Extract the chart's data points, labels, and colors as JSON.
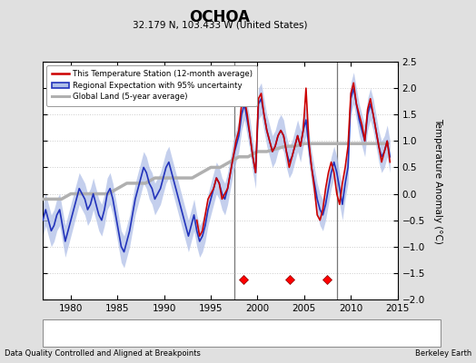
{
  "title": "OCHOA",
  "subtitle": "32.179 N, 103.433 W (United States)",
  "ylabel": "Temperature Anomaly (°C)",
  "xlim": [
    1977,
    2015
  ],
  "ylim": [
    -2.0,
    2.5
  ],
  "yticks": [
    -2.0,
    -1.5,
    -1.0,
    -0.5,
    0.0,
    0.5,
    1.0,
    1.5,
    2.0,
    2.5
  ],
  "xticks": [
    1980,
    1985,
    1990,
    1995,
    2000,
    2005,
    2010,
    2015
  ],
  "footer_left": "Data Quality Controlled and Aligned at Breakpoints",
  "footer_right": "Berkeley Earth",
  "bg_color": "#e0e0e0",
  "plot_bg_color": "#ffffff",
  "vertical_lines": [
    1997.5,
    2008.5
  ],
  "station_move_years": [
    1998.5,
    2003.5,
    2007.5
  ],
  "blue_line_x": [
    1977.0,
    1977.3,
    1977.6,
    1977.9,
    1978.2,
    1978.5,
    1978.8,
    1979.1,
    1979.4,
    1979.7,
    1980.0,
    1980.3,
    1980.6,
    1980.9,
    1981.2,
    1981.5,
    1981.8,
    1982.1,
    1982.4,
    1982.7,
    1983.0,
    1983.3,
    1983.6,
    1983.9,
    1984.2,
    1984.5,
    1984.8,
    1985.1,
    1985.4,
    1985.7,
    1986.0,
    1986.3,
    1986.6,
    1986.9,
    1987.2,
    1987.5,
    1987.8,
    1988.1,
    1988.4,
    1988.7,
    1989.0,
    1989.3,
    1989.6,
    1989.9,
    1990.2,
    1990.5,
    1990.8,
    1991.1,
    1991.4,
    1991.7,
    1992.0,
    1992.3,
    1992.6,
    1992.9,
    1993.2,
    1993.5,
    1993.8,
    1994.1,
    1994.4,
    1994.7,
    1995.0,
    1995.3,
    1995.6,
    1995.9,
    1996.2,
    1996.5,
    1996.8,
    1997.1,
    1997.4,
    1997.7,
    1998.0,
    1998.3,
    1998.6,
    1998.9,
    1999.2,
    1999.5,
    1999.8,
    2000.1,
    2000.4,
    2000.7,
    2001.0,
    2001.3,
    2001.6,
    2001.9,
    2002.2,
    2002.5,
    2002.8,
    2003.1,
    2003.4,
    2003.7,
    2004.0,
    2004.3,
    2004.6,
    2004.9,
    2005.2,
    2005.5,
    2005.8,
    2006.1,
    2006.4,
    2006.7,
    2007.0,
    2007.3,
    2007.6,
    2007.9,
    2008.2,
    2008.5,
    2008.8,
    2009.1,
    2009.4,
    2009.7,
    2010.0,
    2010.3,
    2010.6,
    2010.9,
    2011.2,
    2011.5,
    2011.8,
    2012.1,
    2012.4,
    2012.7,
    2013.0,
    2013.3,
    2013.6,
    2013.9,
    2014.2
  ],
  "blue_line_y": [
    -0.5,
    -0.3,
    -0.5,
    -0.7,
    -0.6,
    -0.4,
    -0.3,
    -0.6,
    -0.9,
    -0.7,
    -0.5,
    -0.3,
    -0.1,
    0.1,
    0.0,
    -0.1,
    -0.3,
    -0.2,
    0.0,
    -0.2,
    -0.4,
    -0.5,
    -0.3,
    0.0,
    0.1,
    -0.1,
    -0.4,
    -0.7,
    -1.0,
    -1.1,
    -0.9,
    -0.7,
    -0.4,
    -0.1,
    0.1,
    0.3,
    0.5,
    0.4,
    0.2,
    0.1,
    -0.1,
    0.0,
    0.1,
    0.3,
    0.5,
    0.6,
    0.4,
    0.2,
    0.0,
    -0.2,
    -0.4,
    -0.6,
    -0.8,
    -0.6,
    -0.4,
    -0.7,
    -0.9,
    -0.8,
    -0.6,
    -0.3,
    -0.1,
    0.1,
    0.3,
    0.2,
    0.0,
    -0.1,
    0.1,
    0.4,
    0.7,
    0.9,
    1.1,
    1.5,
    1.7,
    1.4,
    1.1,
    0.7,
    0.4,
    1.7,
    1.8,
    1.5,
    1.2,
    1.0,
    0.8,
    0.9,
    1.1,
    1.2,
    1.1,
    0.8,
    0.6,
    0.7,
    0.9,
    1.1,
    0.9,
    1.2,
    1.4,
    0.9,
    0.5,
    0.2,
    -0.1,
    -0.3,
    -0.4,
    -0.2,
    0.1,
    0.4,
    0.6,
    0.4,
    0.1,
    -0.2,
    0.2,
    0.5,
    1.8,
    2.0,
    1.7,
    1.4,
    1.2,
    1.0,
    1.5,
    1.7,
    1.5,
    1.2,
    0.9,
    0.7,
    0.8,
    1.0,
    0.7
  ],
  "blue_fill_upper": [
    -0.2,
    -0.0,
    -0.2,
    -0.4,
    -0.3,
    -0.1,
    -0.0,
    -0.3,
    -0.6,
    -0.4,
    -0.2,
    -0.0,
    0.2,
    0.4,
    0.3,
    0.2,
    0.0,
    0.1,
    0.3,
    0.1,
    -0.1,
    -0.2,
    -0.0,
    0.3,
    0.4,
    0.2,
    -0.1,
    -0.4,
    -0.7,
    -0.8,
    -0.6,
    -0.4,
    -0.1,
    0.2,
    0.4,
    0.6,
    0.8,
    0.7,
    0.5,
    0.4,
    0.2,
    0.3,
    0.4,
    0.6,
    0.8,
    0.9,
    0.7,
    0.5,
    0.3,
    0.1,
    -0.1,
    -0.3,
    -0.5,
    -0.3,
    -0.1,
    -0.4,
    -0.6,
    -0.5,
    -0.3,
    -0.0,
    0.2,
    0.4,
    0.6,
    0.5,
    0.3,
    0.2,
    0.4,
    0.7,
    1.0,
    1.2,
    1.4,
    1.8,
    2.0,
    1.7,
    1.4,
    1.0,
    0.7,
    2.0,
    2.1,
    1.8,
    1.5,
    1.3,
    1.1,
    1.2,
    1.4,
    1.5,
    1.4,
    1.1,
    0.9,
    1.0,
    1.2,
    1.4,
    1.2,
    1.5,
    1.7,
    1.2,
    0.8,
    0.5,
    0.2,
    0.0,
    -0.1,
    0.1,
    0.4,
    0.7,
    0.9,
    0.7,
    0.4,
    0.1,
    0.5,
    0.8,
    2.1,
    2.3,
    2.0,
    1.7,
    1.5,
    1.3,
    1.8,
    2.0,
    1.8,
    1.5,
    1.2,
    1.0,
    1.1,
    1.3,
    1.0
  ],
  "blue_fill_lower": [
    -0.8,
    -0.6,
    -0.8,
    -1.0,
    -0.9,
    -0.7,
    -0.6,
    -0.9,
    -1.2,
    -1.0,
    -0.8,
    -0.6,
    -0.4,
    -0.2,
    -0.3,
    -0.4,
    -0.6,
    -0.5,
    -0.3,
    -0.5,
    -0.7,
    -0.8,
    -0.6,
    -0.3,
    -0.2,
    -0.4,
    -0.7,
    -1.0,
    -1.3,
    -1.4,
    -1.2,
    -1.0,
    -0.7,
    -0.4,
    -0.2,
    0.0,
    0.2,
    0.1,
    -0.1,
    -0.2,
    -0.4,
    -0.3,
    -0.2,
    0.0,
    0.2,
    0.3,
    0.1,
    -0.1,
    -0.3,
    -0.5,
    -0.7,
    -0.9,
    -1.1,
    -0.9,
    -0.7,
    -1.0,
    -1.2,
    -1.1,
    -0.9,
    -0.6,
    -0.4,
    -0.2,
    0.0,
    -0.1,
    -0.3,
    -0.4,
    -0.2,
    0.1,
    0.4,
    0.6,
    0.8,
    1.2,
    1.4,
    1.1,
    0.8,
    0.4,
    0.1,
    1.4,
    1.5,
    1.2,
    0.9,
    0.7,
    0.5,
    0.6,
    0.8,
    0.9,
    0.8,
    0.5,
    0.3,
    0.4,
    0.6,
    0.8,
    0.6,
    0.9,
    1.1,
    0.6,
    0.2,
    -0.1,
    -0.4,
    -0.6,
    -0.7,
    -0.5,
    -0.2,
    0.1,
    0.3,
    0.1,
    -0.2,
    -0.5,
    -0.1,
    0.2,
    1.5,
    1.7,
    1.4,
    1.1,
    0.9,
    0.7,
    1.2,
    1.4,
    1.2,
    0.9,
    0.6,
    0.4,
    0.5,
    0.7,
    0.4
  ],
  "red_line_x": [
    1993.5,
    1993.8,
    1994.1,
    1994.4,
    1994.7,
    1995.0,
    1995.3,
    1995.6,
    1995.9,
    1996.2,
    1996.5,
    1996.8,
    1997.1,
    1997.4,
    1997.7,
    1998.0,
    1998.3,
    1998.6,
    1998.9,
    1999.2,
    1999.5,
    1999.8,
    2000.1,
    2000.4,
    2000.7,
    2001.0,
    2001.3,
    2001.6,
    2001.9,
    2002.2,
    2002.5,
    2002.8,
    2003.1,
    2003.4,
    2003.7,
    2004.0,
    2004.3,
    2004.6,
    2004.9,
    2005.2,
    2005.5,
    2005.8,
    2006.1,
    2006.4,
    2006.7,
    2007.0,
    2007.3,
    2007.6,
    2007.9,
    2008.2,
    2008.5,
    2008.8,
    2009.1,
    2009.4,
    2009.7,
    2010.0,
    2010.3,
    2010.6,
    2010.9,
    2011.2,
    2011.5,
    2011.8,
    2012.1,
    2012.4,
    2012.7,
    2013.0,
    2013.3,
    2013.6,
    2013.9,
    2014.2
  ],
  "red_line_y": [
    -0.5,
    -0.8,
    -0.7,
    -0.4,
    -0.1,
    0.0,
    0.1,
    0.3,
    0.2,
    -0.1,
    0.0,
    0.1,
    0.4,
    0.7,
    1.0,
    1.2,
    1.7,
    1.8,
    1.5,
    1.1,
    0.7,
    0.4,
    1.8,
    1.9,
    1.5,
    1.2,
    1.0,
    0.8,
    0.9,
    1.1,
    1.2,
    1.1,
    0.8,
    0.5,
    0.7,
    0.9,
    1.1,
    0.9,
    1.2,
    2.0,
    1.0,
    0.5,
    0.1,
    -0.4,
    -0.5,
    -0.3,
    0.1,
    0.4,
    0.6,
    0.4,
    0.0,
    -0.2,
    0.2,
    0.5,
    0.9,
    1.9,
    2.1,
    1.7,
    1.5,
    1.3,
    1.0,
    1.6,
    1.8,
    1.5,
    1.2,
    0.9,
    0.6,
    0.8,
    1.0,
    0.6
  ],
  "gray_line_x": [
    1977.0,
    1978.0,
    1979.0,
    1980.0,
    1981.0,
    1982.0,
    1983.0,
    1984.0,
    1985.0,
    1986.0,
    1987.0,
    1988.0,
    1989.0,
    1990.0,
    1991.0,
    1992.0,
    1993.0,
    1994.0,
    1995.0,
    1996.0,
    1997.0,
    1998.0,
    1999.0,
    2000.0,
    2001.0,
    2002.0,
    2003.0,
    2004.0,
    2005.0,
    2006.0,
    2007.0,
    2008.0,
    2009.0,
    2010.0,
    2011.0,
    2012.0,
    2013.0,
    2014.0
  ],
  "gray_line_y": [
    -0.1,
    -0.1,
    -0.1,
    -0.0,
    -0.0,
    0.0,
    0.0,
    0.0,
    0.1,
    0.2,
    0.2,
    0.2,
    0.3,
    0.3,
    0.3,
    0.3,
    0.3,
    0.4,
    0.5,
    0.5,
    0.6,
    0.7,
    0.7,
    0.8,
    0.8,
    0.85,
    0.9,
    0.9,
    0.95,
    0.95,
    0.95,
    0.95,
    0.95,
    0.95,
    0.95,
    0.95,
    0.95,
    0.95
  ]
}
